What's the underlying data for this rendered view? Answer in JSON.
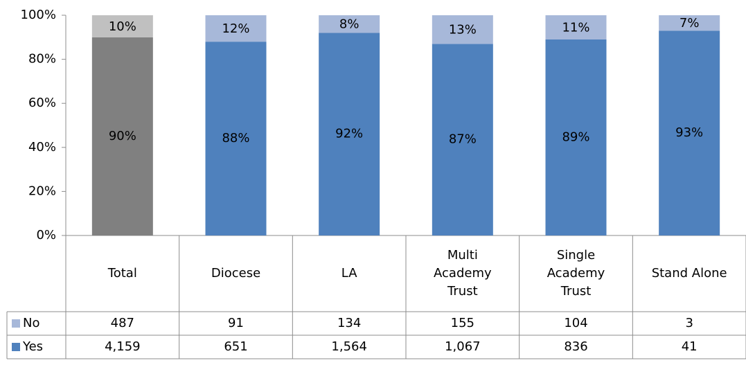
{
  "chart_data": {
    "type": "stacked_bar",
    "categories": [
      "Total",
      "Diocese",
      "LA",
      "Multi Academy Trust",
      "Single Academy Trust",
      "Stand Alone"
    ],
    "series": [
      {
        "name": "Yes",
        "color": "#4f81bd",
        "colors": [
          "#808080",
          "#4f81bd",
          "#4f81bd",
          "#4f81bd",
          "#4f81bd",
          "#4f81bd"
        ],
        "values": [
          90,
          88,
          92,
          87,
          89,
          93
        ],
        "value_labels": [
          "90%",
          "88%",
          "92%",
          "87%",
          "89%",
          "93%"
        ],
        "table_values": [
          "4,159",
          "651",
          "1,564",
          "1,067",
          "836",
          "41"
        ]
      },
      {
        "name": "No",
        "color": "#a7b8d9",
        "colors": [
          "#c0c0c0",
          "#a7b8d9",
          "#a7b8d9",
          "#a7b8d9",
          "#a7b8d9",
          "#a7b8d9"
        ],
        "values": [
          10,
          12,
          8,
          13,
          11,
          7
        ],
        "value_labels": [
          "10%",
          "12%",
          "8%",
          "13%",
          "11%",
          "7%"
        ],
        "table_values": [
          "487",
          "91",
          "134",
          "155",
          "104",
          "3"
        ]
      }
    ],
    "ylim": [
      0,
      100
    ],
    "yticks": [
      {
        "value": 0,
        "label": "0%"
      },
      {
        "value": 20,
        "label": "20%"
      },
      {
        "value": 40,
        "label": "40%"
      },
      {
        "value": 60,
        "label": "60%"
      },
      {
        "value": 80,
        "label": "80%"
      },
      {
        "value": 100,
        "label": "100%"
      }
    ],
    "grid": false
  }
}
